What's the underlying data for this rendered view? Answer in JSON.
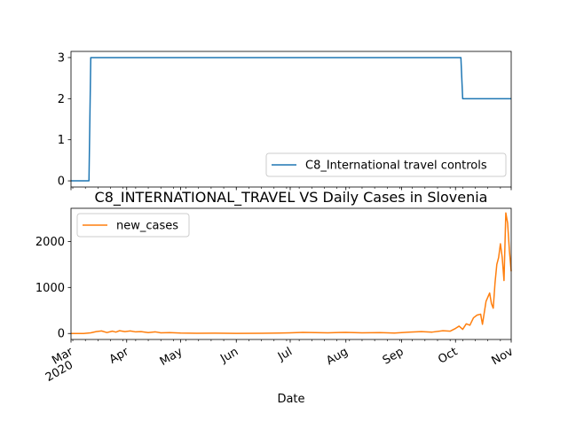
{
  "chart_data": [
    {
      "type": "line",
      "title": "",
      "xlabel": "",
      "ylabel": "",
      "xlim": [
        "2020-03-01",
        "2020-11-01"
      ],
      "ylim": [
        -0.15,
        3.15
      ],
      "yticks": [
        0,
        1,
        2,
        3
      ],
      "legend": "lower-right",
      "series": [
        {
          "name": "C8_International travel controls",
          "color": "#1f77b4",
          "x": [
            "2020-03-01",
            "2020-03-11",
            "2020-03-12",
            "2020-10-04",
            "2020-10-05",
            "2020-11-01"
          ],
          "values": [
            0,
            0,
            3,
            3,
            2,
            2
          ]
        }
      ]
    },
    {
      "type": "line",
      "title": "C8_INTERNATIONAL_TRAVEL VS Daily Cases in Slovenia",
      "xlabel": "Date",
      "ylabel": "",
      "xlim": [
        "2020-03-01",
        "2020-11-01"
      ],
      "ylim": [
        -130,
        2720
      ],
      "yticks": [
        0,
        1000,
        2000
      ],
      "xticks": [
        {
          "date": "2020-03-01",
          "label": "Mar",
          "sublabel": "2020"
        },
        {
          "date": "2020-04-01",
          "label": "Apr"
        },
        {
          "date": "2020-05-01",
          "label": "May"
        },
        {
          "date": "2020-06-01",
          "label": "Jun"
        },
        {
          "date": "2020-07-01",
          "label": "Jul"
        },
        {
          "date": "2020-08-01",
          "label": "Aug"
        },
        {
          "date": "2020-09-01",
          "label": "Sep"
        },
        {
          "date": "2020-10-01",
          "label": "Oct"
        },
        {
          "date": "2020-11-01",
          "label": "Nov"
        }
      ],
      "legend": "upper-left",
      "series": [
        {
          "name": "new_cases",
          "color": "#ff7f0e",
          "x": [
            "2020-03-01",
            "2020-03-08",
            "2020-03-12",
            "2020-03-15",
            "2020-03-18",
            "2020-03-21",
            "2020-03-24",
            "2020-03-26",
            "2020-03-28",
            "2020-03-31",
            "2020-04-03",
            "2020-04-06",
            "2020-04-09",
            "2020-04-13",
            "2020-04-17",
            "2020-04-20",
            "2020-04-25",
            "2020-05-01",
            "2020-05-10",
            "2020-05-20",
            "2020-06-01",
            "2020-06-15",
            "2020-06-25",
            "2020-07-01",
            "2020-07-08",
            "2020-07-15",
            "2020-07-22",
            "2020-08-01",
            "2020-08-10",
            "2020-08-20",
            "2020-08-28",
            "2020-09-05",
            "2020-09-12",
            "2020-09-18",
            "2020-09-24",
            "2020-09-28",
            "2020-10-01",
            "2020-10-03",
            "2020-10-05",
            "2020-10-07",
            "2020-10-09",
            "2020-10-11",
            "2020-10-13",
            "2020-10-15",
            "2020-10-16",
            "2020-10-18",
            "2020-10-20",
            "2020-10-21",
            "2020-10-22",
            "2020-10-23",
            "2020-10-24",
            "2020-10-25",
            "2020-10-26",
            "2020-10-27",
            "2020-10-28",
            "2020-10-29",
            "2020-10-30",
            "2020-10-31",
            "2020-11-01"
          ],
          "values": [
            0,
            0,
            15,
            40,
            55,
            20,
            50,
            30,
            60,
            40,
            55,
            35,
            40,
            20,
            35,
            15,
            20,
            10,
            5,
            8,
            3,
            5,
            10,
            15,
            25,
            20,
            15,
            25,
            15,
            20,
            10,
            30,
            40,
            30,
            60,
            50,
            110,
            160,
            90,
            210,
            180,
            340,
            400,
            420,
            200,
            700,
            880,
            650,
            550,
            1100,
            1500,
            1650,
            1950,
            1650,
            1150,
            2620,
            2400,
            1800,
            1350
          ]
        }
      ]
    }
  ]
}
